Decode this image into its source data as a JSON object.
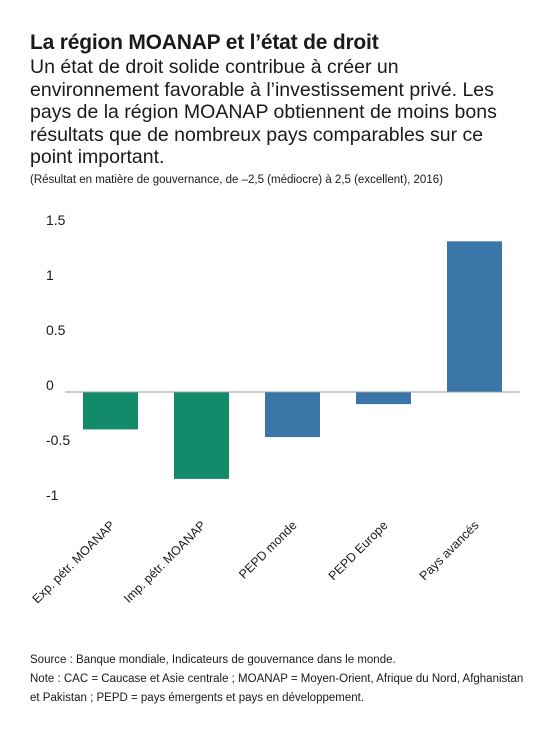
{
  "header": {
    "title": "La région MOANAP et l’état de droit",
    "subtitle": "Un état de droit solide contribue à créer un environnement favorable à l’investissement privé. Les pays de la région MOANAP obtiennent de moins bons résultats que de nombreux pays comparables sur ce point important.",
    "note": "(Résultat en matière de gouvernance, de –2,5 (médiocre) à 2,5 (excellent), 2016)"
  },
  "footer": {
    "source": "Source : Banque mondiale, Indicateurs de gouvernance dans le monde.",
    "note": "Note : CAC = Caucase et Asie centrale ; MOANAP = Moyen-Orient, Afrique du Nord, Afghanistan et Pakistan ; PEPD = pays émergents et pays en développement."
  },
  "chart_data": {
    "type": "bar",
    "categories": [
      "Exp. pétr. MOANAP",
      "Imp. pétr. MOANAP",
      "PEPD monde",
      "PEPD Europe",
      "Pays avancés"
    ],
    "values": [
      -0.34,
      -0.79,
      -0.41,
      -0.11,
      1.37
    ],
    "colors": [
      "#138a6a",
      "#138a6a",
      "#3a77a8",
      "#3a77a8",
      "#3a77a8"
    ],
    "ylim": [
      -1,
      1.5
    ],
    "yticks": [
      1.5,
      1,
      0.5,
      0,
      -0.5,
      -1
    ],
    "ytick_labels": [
      "1.5",
      "1",
      "0.5",
      "0",
      "-0.5",
      "-1"
    ],
    "grid": false,
    "legend": "none"
  }
}
